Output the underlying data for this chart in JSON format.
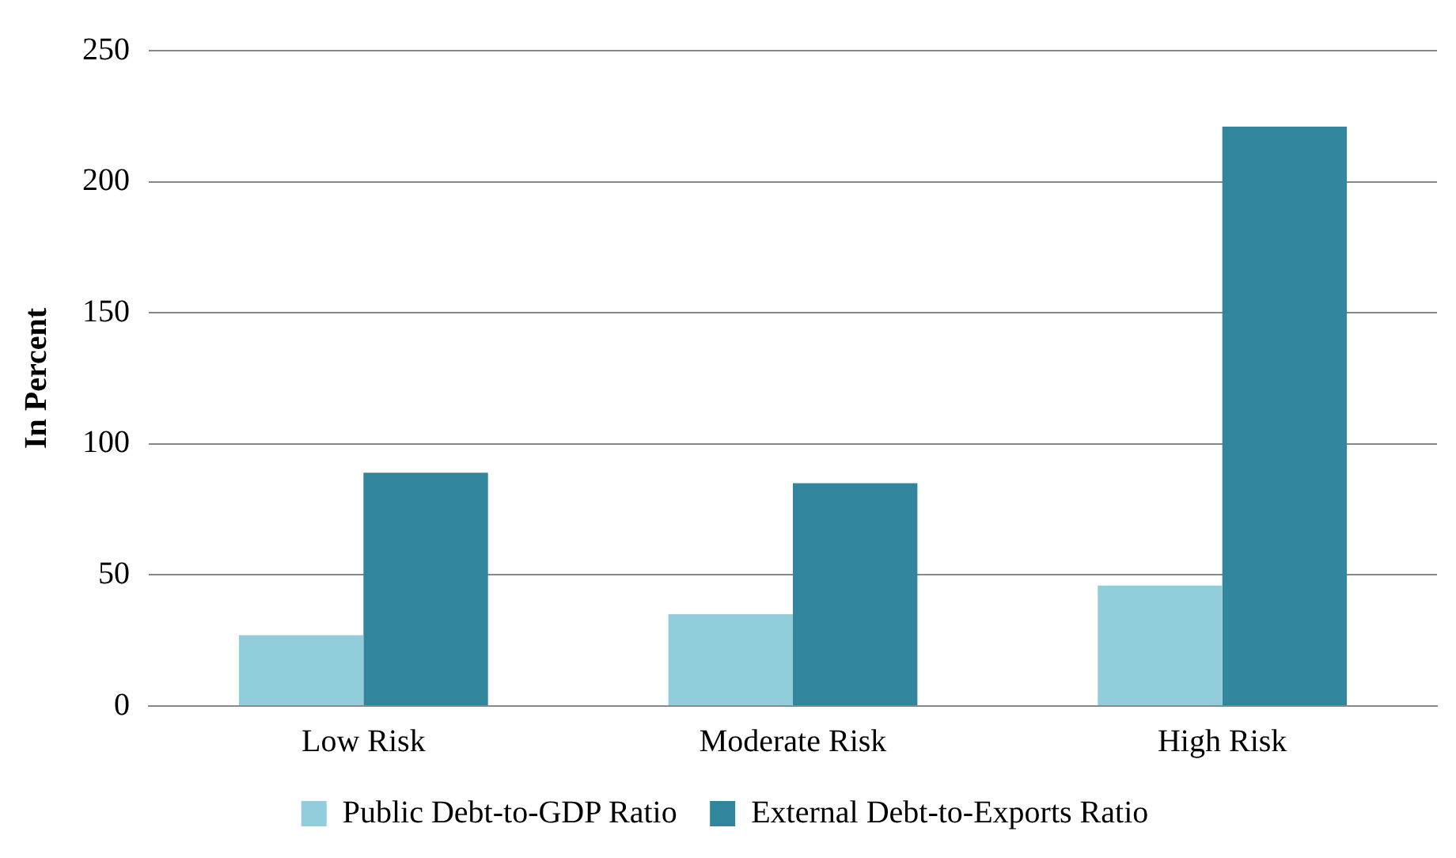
{
  "chart_data": {
    "type": "bar",
    "ylabel": "In Percent",
    "categories": [
      "Low Risk",
      "Moderate Risk",
      "High Risk"
    ],
    "series": [
      {
        "name": "Public Debt-to-GDP Ratio",
        "color": "#92cddc",
        "values": [
          27,
          35,
          46
        ]
      },
      {
        "name": "External Debt-to-Exports Ratio",
        "color": "#31859c",
        "values": [
          89,
          85,
          221
        ]
      }
    ],
    "ylim": [
      0,
      250
    ],
    "yticks": [
      0,
      50,
      100,
      150,
      200,
      250
    ],
    "grid": "y",
    "legend": "bottom"
  }
}
